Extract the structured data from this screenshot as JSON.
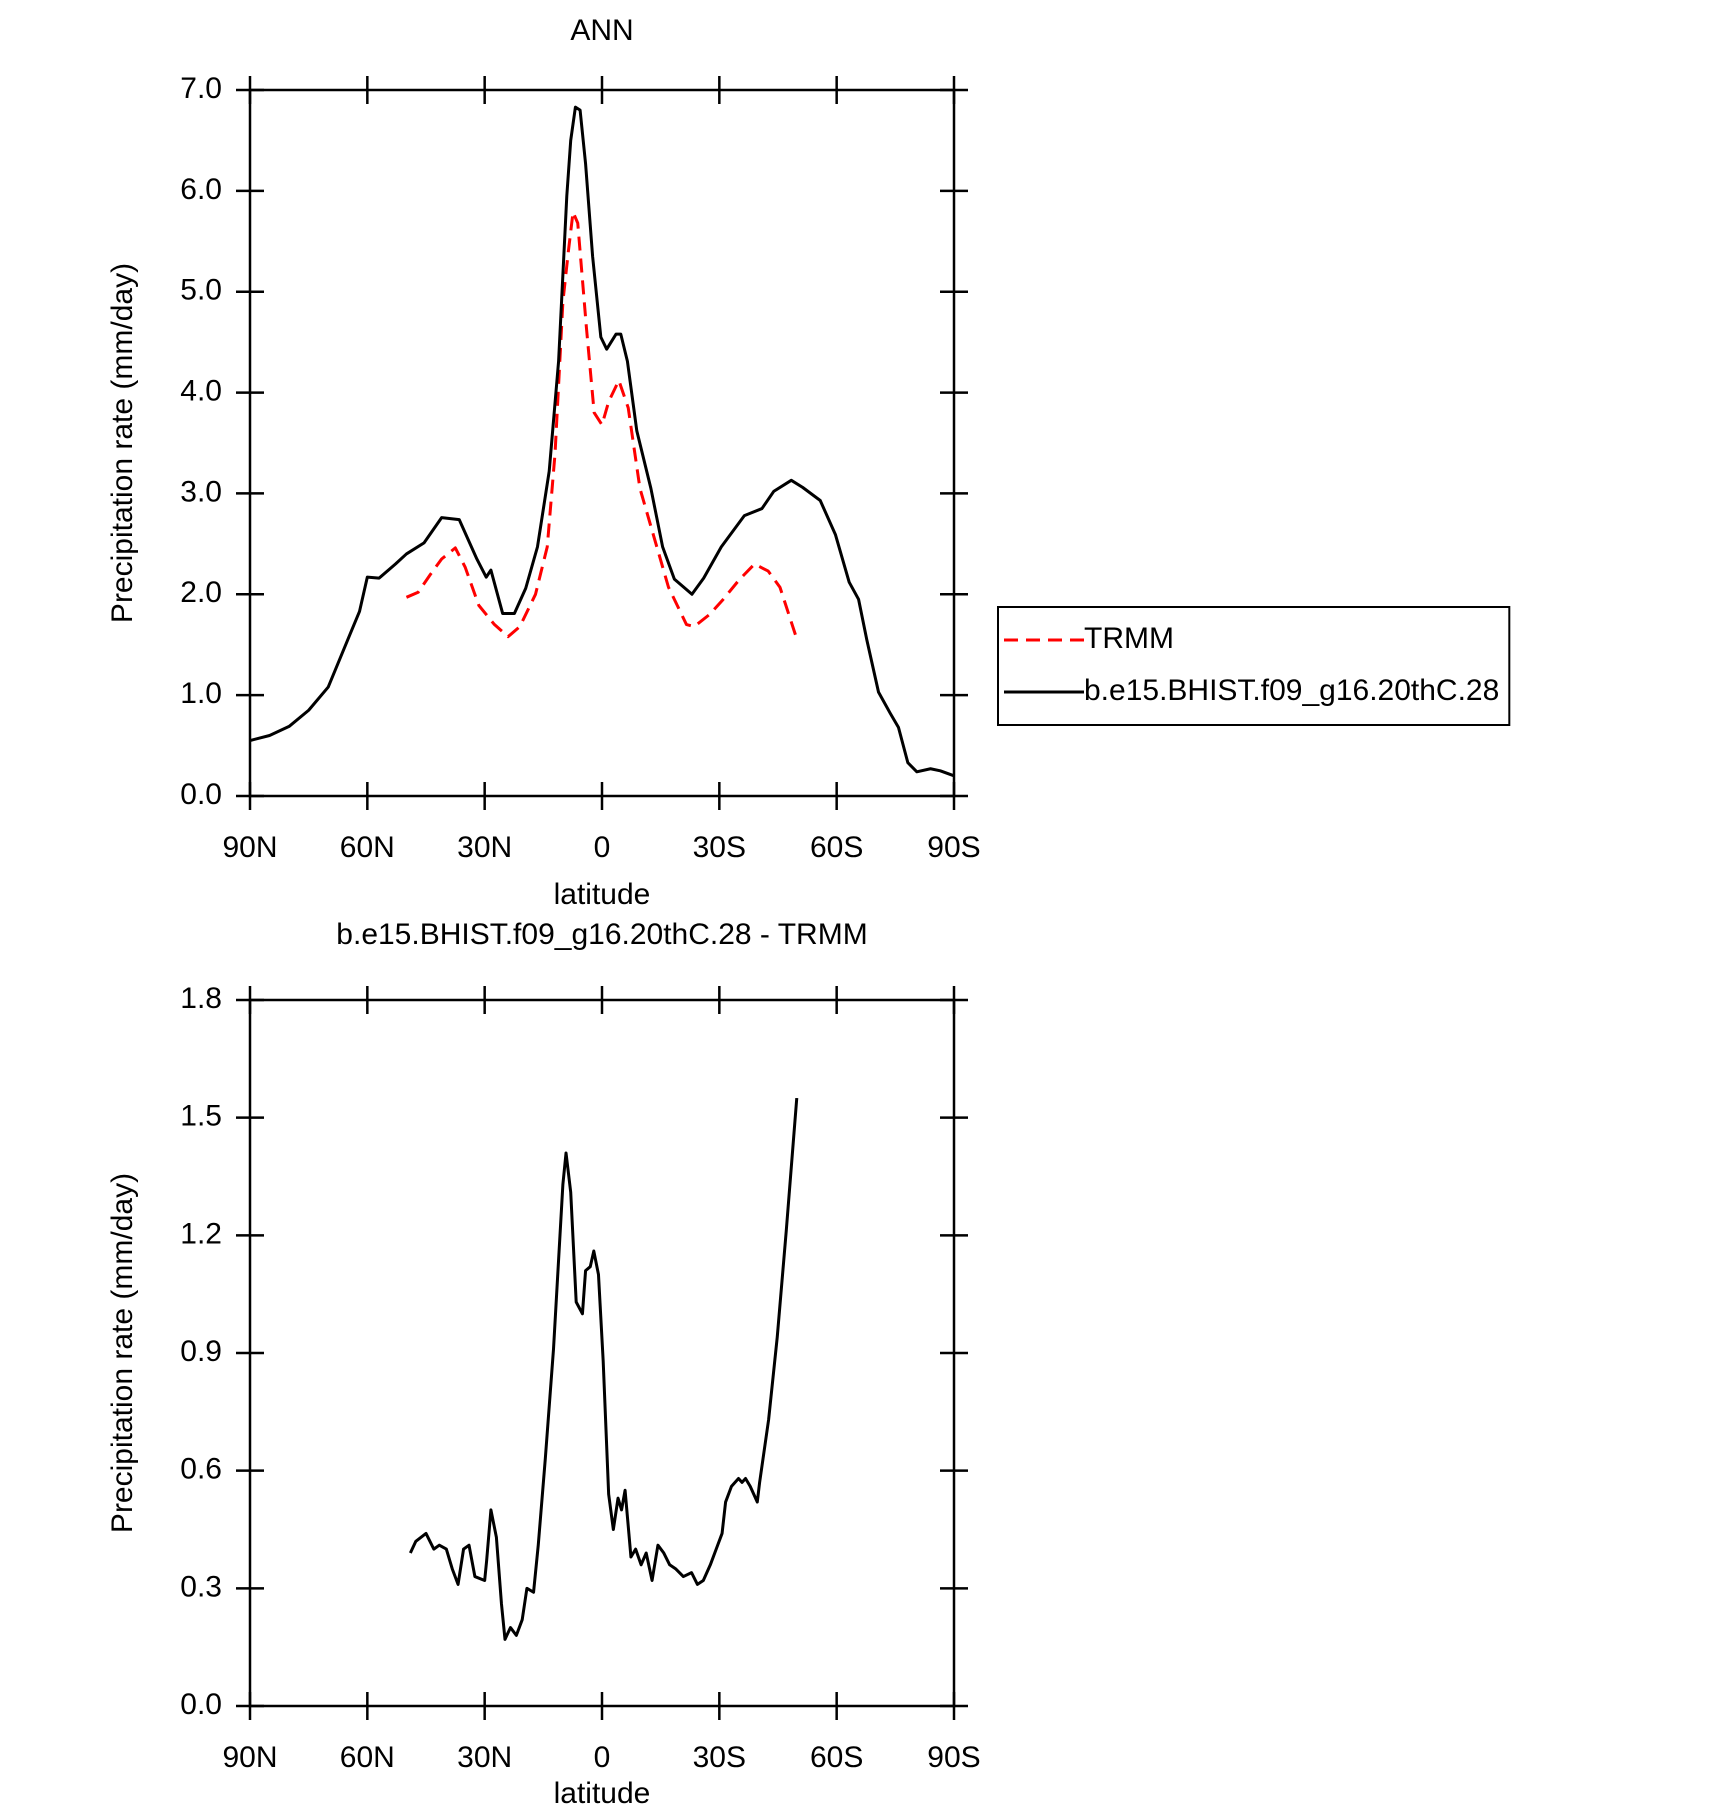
{
  "chart_data": [
    {
      "type": "line",
      "title": "ANN",
      "xlabel": "latitude",
      "ylabel": "Precipitation rate (mm/day)",
      "xlim": [
        90,
        -90
      ],
      "xticks": [
        {
          "value": 90,
          "label": "90N"
        },
        {
          "value": 60,
          "label": "60N"
        },
        {
          "value": 30,
          "label": "30N"
        },
        0,
        {
          "value": -30,
          "label": "30S"
        },
        {
          "value": -60,
          "label": "60S"
        },
        {
          "value": -90,
          "label": "90S"
        }
      ],
      "ylim": [
        0,
        7
      ],
      "yticks": [
        {
          "value": 0,
          "label": "0.0"
        },
        {
          "value": 1,
          "label": "1.0"
        },
        {
          "value": 2,
          "label": "2.0"
        },
        {
          "value": 3,
          "label": "3.0"
        },
        {
          "value": 4,
          "label": "4.0"
        },
        {
          "value": 5,
          "label": "5.0"
        },
        {
          "value": 6,
          "label": "6.0"
        },
        {
          "value": 7,
          "label": "7.0"
        }
      ],
      "legend": "right",
      "series": [
        {
          "name": "TRMM",
          "color": "#ff0000",
          "dashed": true,
          "x": [
            50,
            47,
            44,
            41,
            37.5,
            35,
            31.5,
            27.5,
            24,
            21,
            17,
            14,
            12,
            10,
            8.6,
            7.4,
            6.2,
            4,
            2,
            0,
            -1.7,
            -4.3,
            -6.7,
            -9.7,
            -13.2,
            -17,
            -21.6,
            -23.6,
            -27.5,
            -31,
            -35,
            -39,
            -42.5,
            -45.5,
            -49.7
          ],
          "values": [
            1.97,
            2.02,
            2.19,
            2.35,
            2.46,
            2.27,
            1.89,
            1.7,
            1.58,
            1.68,
            2.0,
            2.47,
            3.4,
            4.9,
            5.4,
            5.79,
            5.68,
            4.65,
            3.8,
            3.68,
            3.91,
            4.12,
            3.85,
            3.05,
            2.58,
            2.07,
            1.7,
            1.68,
            1.8,
            1.95,
            2.14,
            2.3,
            2.23,
            2.07,
            1.57
          ]
        },
        {
          "name": "b.e15.BHIST.f09_g16.20thC.28",
          "color": "#000000",
          "dashed": false,
          "x": [
            90,
            85,
            80,
            75,
            70,
            65,
            62,
            60,
            57,
            52.8,
            50,
            45.5,
            41,
            36.5,
            32,
            29.6,
            28.4,
            25.4,
            22.4,
            19.5,
            16.5,
            13.5,
            11.1,
            9,
            8,
            6.8,
            5.6,
            4.2,
            2.4,
            0.3,
            -1.2,
            -3.6,
            -4.8,
            -6.5,
            -8.9,
            -12.5,
            -15.5,
            -18.5,
            -23,
            -26,
            -30.5,
            -36.4,
            -40.9,
            -43.9,
            -48.4,
            -51.3,
            -55.8,
            -59.7,
            -63.2,
            -65.6,
            -67.7,
            -70.7,
            -73.7,
            -75.8,
            -78.2,
            -80.5,
            -84,
            -86.5,
            -90
          ],
          "values": [
            0.55,
            0.6,
            0.69,
            0.85,
            1.08,
            1.55,
            1.83,
            2.17,
            2.16,
            2.3,
            2.4,
            2.51,
            2.76,
            2.74,
            2.35,
            2.17,
            2.24,
            1.81,
            1.81,
            2.06,
            2.47,
            3.22,
            4.31,
            5.95,
            6.5,
            6.83,
            6.8,
            6.27,
            5.35,
            4.55,
            4.43,
            4.58,
            4.58,
            4.31,
            3.62,
            3.05,
            2.47,
            2.15,
            2.0,
            2.16,
            2.47,
            2.78,
            2.85,
            3.02,
            3.13,
            3.06,
            2.93,
            2.59,
            2.12,
            1.95,
            1.55,
            1.03,
            0.82,
            0.68,
            0.33,
            0.24,
            0.27,
            0.25,
            0.2
          ]
        }
      ]
    },
    {
      "type": "line",
      "title": "b.e15.BHIST.f09_g16.20thC.28 - TRMM",
      "xlabel": "latitude",
      "ylabel": "Precipitation rate (mm/day)",
      "xlim": [
        90,
        -90
      ],
      "xticks": [
        {
          "value": 90,
          "label": "90N"
        },
        {
          "value": 60,
          "label": "60N"
        },
        {
          "value": 30,
          "label": "30N"
        },
        0,
        {
          "value": -30,
          "label": "30S"
        },
        {
          "value": -60,
          "label": "60S"
        },
        {
          "value": -90,
          "label": "90S"
        }
      ],
      "ylim": [
        0,
        1.8
      ],
      "yticks": [
        {
          "value": 0,
          "label": "0.0"
        },
        0.3,
        0.6,
        0.9,
        1.2,
        1.5,
        1.8
      ],
      "series": [
        {
          "color": "#000000",
          "dashed": false,
          "x": [
            49,
            47.6,
            45,
            43,
            41.6,
            39.8,
            38.3,
            36.8,
            35.4,
            34,
            32.5,
            30,
            29.5,
            28.4,
            27,
            25.7,
            24.8,
            23.4,
            21.9,
            20.4,
            19.2,
            17.5,
            16.3,
            14.5,
            12.4,
            10,
            9.2,
            8,
            6.6,
            5,
            4.2,
            3,
            2.1,
            0.9,
            -0.3,
            -1.7,
            -2.9,
            -4.1,
            -5,
            -5.9,
            -7.4,
            -8.6,
            -10,
            -11.3,
            -12.8,
            -14.3,
            -15.8,
            -17.3,
            -18.8,
            -20.8,
            -22.9,
            -24.4,
            -25.9,
            -27.7,
            -29.2,
            -30.7,
            -31.6,
            -33.1,
            -34.9,
            -35.8,
            -36.7,
            -37.9,
            -39.7,
            -40.3,
            -42.6,
            -44.8,
            -47.1,
            -49.8
          ],
          "values": [
            0.39,
            0.42,
            0.44,
            0.4,
            0.41,
            0.4,
            0.35,
            0.31,
            0.4,
            0.41,
            0.33,
            0.32,
            0.37,
            0.5,
            0.43,
            0.26,
            0.17,
            0.2,
            0.18,
            0.22,
            0.3,
            0.29,
            0.41,
            0.63,
            0.91,
            1.33,
            1.41,
            1.31,
            1.03,
            1.0,
            1.11,
            1.12,
            1.16,
            1.1,
            0.88,
            0.54,
            0.45,
            0.53,
            0.5,
            0.55,
            0.38,
            0.4,
            0.36,
            0.39,
            0.32,
            0.41,
            0.39,
            0.36,
            0.35,
            0.33,
            0.34,
            0.31,
            0.32,
            0.36,
            0.4,
            0.44,
            0.52,
            0.56,
            0.58,
            0.57,
            0.58,
            0.56,
            0.52,
            0.57,
            0.73,
            0.94,
            1.21,
            1.55
          ]
        }
      ]
    }
  ]
}
